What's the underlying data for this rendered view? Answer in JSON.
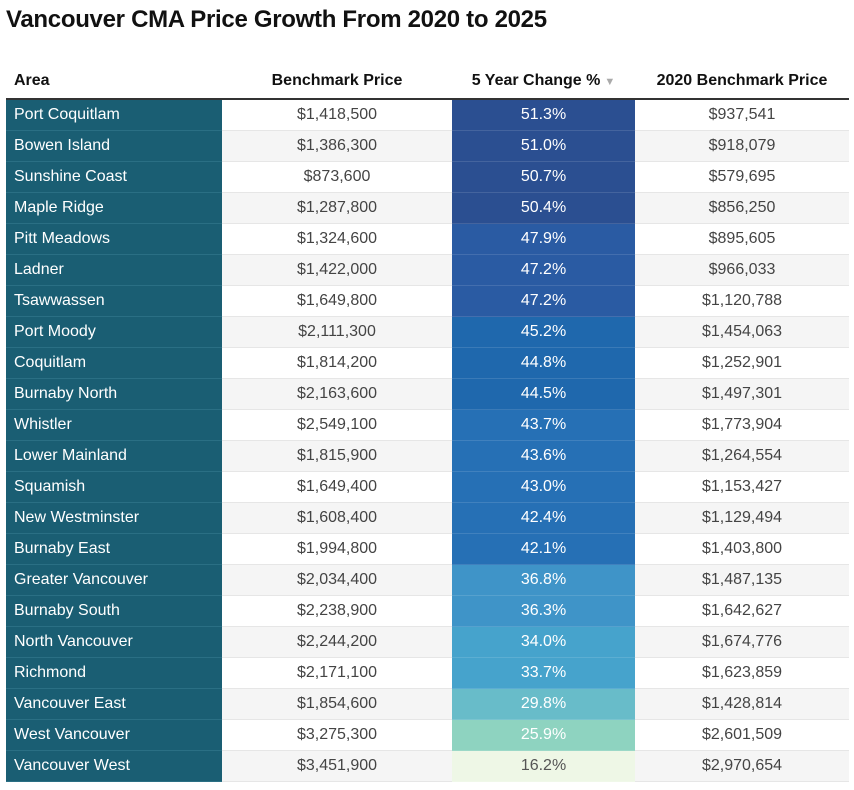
{
  "chart_data": {
    "type": "table",
    "title": "Vancouver CMA Price Growth From 2020 to 2025",
    "columns": [
      "Area",
      "Benchmark Price",
      "5 Year Change %",
      "2020 Benchmark Price"
    ],
    "sort_icon": "sort-down-triangle-icon",
    "rows": [
      {
        "area": "Port Coquitlam",
        "price": "$1,418,500",
        "change": "51.3%",
        "price2020": "$937,541",
        "color": "#2b4f91"
      },
      {
        "area": "Bowen Island",
        "price": "$1,386,300",
        "change": "51.0%",
        "price2020": "$918,079",
        "color": "#2b4f91"
      },
      {
        "area": "Sunshine Coast",
        "price": "$873,600",
        "change": "50.7%",
        "price2020": "$579,695",
        "color": "#2b4f91"
      },
      {
        "area": "Maple Ridge",
        "price": "$1,287,800",
        "change": "50.4%",
        "price2020": "$856,250",
        "color": "#2b4f91"
      },
      {
        "area": "Pitt Meadows",
        "price": "$1,324,600",
        "change": "47.9%",
        "price2020": "$895,605",
        "color": "#2a5ba3"
      },
      {
        "area": "Ladner",
        "price": "$1,422,000",
        "change": "47.2%",
        "price2020": "$966,033",
        "color": "#2a5ba3"
      },
      {
        "area": "Tsawwassen",
        "price": "$1,649,800",
        "change": "47.2%",
        "price2020": "$1,120,788",
        "color": "#2a5ba3"
      },
      {
        "area": "Port Moody",
        "price": "$2,111,300",
        "change": "45.2%",
        "price2020": "$1,454,063",
        "color": "#1f68ad"
      },
      {
        "area": "Coquitlam",
        "price": "$1,814,200",
        "change": "44.8%",
        "price2020": "$1,252,901",
        "color": "#1f68ad"
      },
      {
        "area": "Burnaby North",
        "price": "$2,163,600",
        "change": "44.5%",
        "price2020": "$1,497,301",
        "color": "#1f68ad"
      },
      {
        "area": "Whistler",
        "price": "$2,549,100",
        "change": "43.7%",
        "price2020": "$1,773,904",
        "color": "#2670b5"
      },
      {
        "area": "Lower Mainland",
        "price": "$1,815,900",
        "change": "43.6%",
        "price2020": "$1,264,554",
        "color": "#2670b5"
      },
      {
        "area": "Squamish",
        "price": "$1,649,400",
        "change": "43.0%",
        "price2020": "$1,153,427",
        "color": "#2670b5"
      },
      {
        "area": "New Westminster",
        "price": "$1,608,400",
        "change": "42.4%",
        "price2020": "$1,129,494",
        "color": "#2670b5"
      },
      {
        "area": "Burnaby East",
        "price": "$1,994,800",
        "change": "42.1%",
        "price2020": "$1,403,800",
        "color": "#2670b5"
      },
      {
        "area": "Greater Vancouver",
        "price": "$2,034,400",
        "change": "36.8%",
        "price2020": "$1,487,135",
        "color": "#3f94c8"
      },
      {
        "area": "Burnaby South",
        "price": "$2,238,900",
        "change": "36.3%",
        "price2020": "$1,642,627",
        "color": "#3f94c8"
      },
      {
        "area": "North Vancouver",
        "price": "$2,244,200",
        "change": "34.0%",
        "price2020": "$1,674,776",
        "color": "#46a3cc"
      },
      {
        "area": "Richmond",
        "price": "$2,171,100",
        "change": "33.7%",
        "price2020": "$1,623,859",
        "color": "#46a3cc"
      },
      {
        "area": "Vancouver East",
        "price": "$1,854,600",
        "change": "29.8%",
        "price2020": "$1,428,814",
        "color": "#68bcc9"
      },
      {
        "area": "West Vancouver",
        "price": "$3,275,300",
        "change": "25.9%",
        "price2020": "$2,601,509",
        "color": "#8ed3c0"
      },
      {
        "area": "Vancouver West",
        "price": "$3,451,900",
        "change": "16.2%",
        "price2020": "$2,970,654",
        "color": "#eef7e6",
        "text_color": "#555555"
      }
    ]
  }
}
